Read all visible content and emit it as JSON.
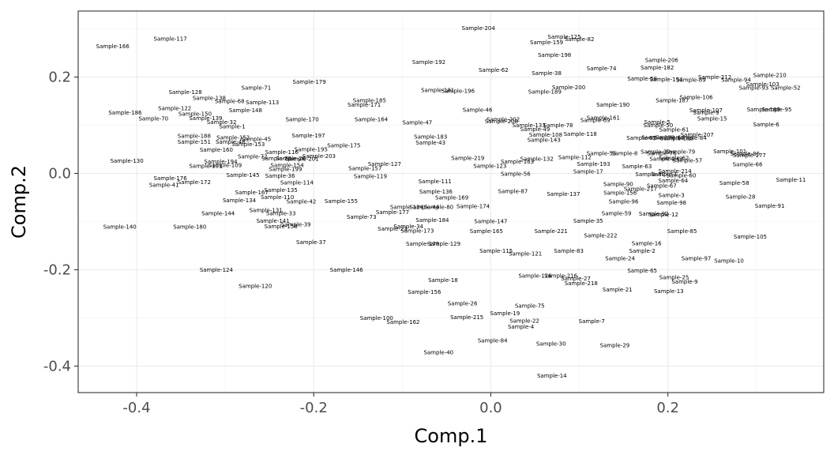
{
  "chart_data": {
    "type": "scatter",
    "title": "",
    "xlabel": "Comp.1",
    "ylabel": "Comp.2",
    "xlim": [
      -0.466,
      0.376
    ],
    "ylim": [
      -0.455,
      0.337
    ],
    "xticks": [
      -0.4,
      -0.2,
      0.0,
      0.2
    ],
    "xtick_labels": [
      "-0.4",
      "-0.2",
      "0.0",
      "0.2"
    ],
    "yticks": [
      -0.4,
      -0.2,
      0.0,
      0.2
    ],
    "ytick_labels": [
      "-0.4",
      "-0.2",
      "0.0",
      "0.2"
    ],
    "grid": true,
    "points": [
      {
        "label": "Sample-204",
        "x": -0.014,
        "y": 0.302
      },
      {
        "label": "Sample-125",
        "x": 0.083,
        "y": 0.284
      },
      {
        "label": "Sample-82",
        "x": 0.1,
        "y": 0.279
      },
      {
        "label": "Sample-159",
        "x": 0.063,
        "y": 0.272
      },
      {
        "label": "Sample-117",
        "x": -0.362,
        "y": 0.28
      },
      {
        "label": "Sample-166",
        "x": -0.427,
        "y": 0.264
      },
      {
        "label": "Sample-198",
        "x": 0.072,
        "y": 0.246
      },
      {
        "label": "Sample-206",
        "x": 0.193,
        "y": 0.235
      },
      {
        "label": "Sample-192",
        "x": -0.07,
        "y": 0.231
      },
      {
        "label": "Sample-182",
        "x": 0.188,
        "y": 0.22
      },
      {
        "label": "Sample-74",
        "x": 0.125,
        "y": 0.218
      },
      {
        "label": "Sample-62",
        "x": 0.003,
        "y": 0.215
      },
      {
        "label": "Sample-38",
        "x": 0.063,
        "y": 0.208
      },
      {
        "label": "Sample-210",
        "x": 0.315,
        "y": 0.204
      },
      {
        "label": "Sample-212",
        "x": 0.253,
        "y": 0.2
      },
      {
        "label": "Sample-179",
        "x": -0.205,
        "y": 0.19
      },
      {
        "label": "Sample-58",
        "x": 0.171,
        "y": 0.197
      },
      {
        "label": "Sample-194",
        "x": 0.198,
        "y": 0.195
      },
      {
        "label": "Sample-89",
        "x": 0.226,
        "y": 0.194
      },
      {
        "label": "Sample-94",
        "x": 0.277,
        "y": 0.194
      },
      {
        "label": "Sample-103",
        "x": 0.307,
        "y": 0.185
      },
      {
        "label": "Sample-200",
        "x": 0.088,
        "y": 0.179
      },
      {
        "label": "Sample-93",
        "x": 0.297,
        "y": 0.178
      },
      {
        "label": "Sample-52",
        "x": 0.333,
        "y": 0.178
      },
      {
        "label": "Sample-71",
        "x": -0.265,
        "y": 0.178
      },
      {
        "label": "Sample-181",
        "x": -0.06,
        "y": 0.173
      },
      {
        "label": "Sample-196",
        "x": -0.037,
        "y": 0.171
      },
      {
        "label": "Sample-189",
        "x": 0.061,
        "y": 0.17
      },
      {
        "label": "Sample-128",
        "x": -0.345,
        "y": 0.169
      },
      {
        "label": "Sample-106",
        "x": 0.232,
        "y": 0.158
      },
      {
        "label": "Sample-138",
        "x": -0.318,
        "y": 0.157
      },
      {
        "label": "Sample-185",
        "x": -0.137,
        "y": 0.152
      },
      {
        "label": "Sample-187",
        "x": 0.205,
        "y": 0.152
      },
      {
        "label": "Sample-68",
        "x": -0.295,
        "y": 0.15
      },
      {
        "label": "Sample-113",
        "x": -0.258,
        "y": 0.148
      },
      {
        "label": "Sample-171",
        "x": -0.143,
        "y": 0.143
      },
      {
        "label": "Sample-190",
        "x": 0.138,
        "y": 0.143
      },
      {
        "label": "Sample-122",
        "x": -0.357,
        "y": 0.135
      },
      {
        "label": "Sample-148",
        "x": -0.277,
        "y": 0.131
      },
      {
        "label": "Sample-46",
        "x": -0.015,
        "y": 0.132
      },
      {
        "label": "Sample-189b",
        "x": 0.308,
        "y": 0.133
      },
      {
        "label": "Sample-95",
        "x": 0.323,
        "y": 0.133
      },
      {
        "label": "Sample-107",
        "x": 0.243,
        "y": 0.131
      },
      {
        "label": "Sample-186",
        "x": -0.413,
        "y": 0.126
      },
      {
        "label": "Sample-150",
        "x": -0.334,
        "y": 0.124
      },
      {
        "label": "Sample-9",
        "x": 0.243,
        "y": 0.126
      },
      {
        "label": "Sample-70",
        "x": -0.381,
        "y": 0.114
      },
      {
        "label": "Sample-139",
        "x": -0.322,
        "y": 0.115
      },
      {
        "label": "Sample-161",
        "x": 0.127,
        "y": 0.116
      },
      {
        "label": "Sample-15",
        "x": 0.25,
        "y": 0.114
      },
      {
        "label": "Sample-69",
        "x": 0.118,
        "y": 0.111
      },
      {
        "label": "Sample-170",
        "x": -0.213,
        "y": 0.112
      },
      {
        "label": "Sample-164",
        "x": -0.135,
        "y": 0.112
      },
      {
        "label": "Sample-202",
        "x": 0.014,
        "y": 0.112
      },
      {
        "label": "Sample-32",
        "x": -0.304,
        "y": 0.107
      },
      {
        "label": "Sample-5",
        "x": 0.188,
        "y": 0.107
      },
      {
        "label": "Sample-47",
        "x": -0.083,
        "y": 0.106
      },
      {
        "label": "Sample-208",
        "x": 0.012,
        "y": 0.108
      },
      {
        "label": "Sample-6",
        "x": 0.311,
        "y": 0.102
      },
      {
        "label": "Sample-1",
        "x": -0.292,
        "y": 0.098
      },
      {
        "label": "Sample-133",
        "x": 0.043,
        "y": 0.1
      },
      {
        "label": "Sample-78",
        "x": 0.076,
        "y": 0.1
      },
      {
        "label": "Sample-50",
        "x": 0.189,
        "y": 0.1
      },
      {
        "label": "Sample-49",
        "x": 0.05,
        "y": 0.092
      },
      {
        "label": "Sample-61",
        "x": 0.207,
        "y": 0.091
      },
      {
        "label": "Sample-197",
        "x": -0.206,
        "y": 0.079
      },
      {
        "label": "Sample-108",
        "x": 0.062,
        "y": 0.08
      },
      {
        "label": "Sample-118",
        "x": 0.101,
        "y": 0.082
      },
      {
        "label": "Sample-183",
        "x": -0.068,
        "y": 0.076
      },
      {
        "label": "Sample-207",
        "x": 0.233,
        "y": 0.08
      },
      {
        "label": "Sample-188",
        "x": -0.335,
        "y": 0.078
      },
      {
        "label": "Sample-152",
        "x": -0.291,
        "y": 0.075
      },
      {
        "label": "Sample-65",
        "x": 0.17,
        "y": 0.074
      },
      {
        "label": "Sample-220",
        "x": 0.189,
        "y": 0.075
      },
      {
        "label": "Sample-64",
        "x": 0.202,
        "y": 0.075
      },
      {
        "label": "Sample-84",
        "x": 0.227,
        "y": 0.074
      },
      {
        "label": "Sample-45",
        "x": -0.265,
        "y": 0.071
      },
      {
        "label": "Sample-188b",
        "x": 0.21,
        "y": 0.073
      },
      {
        "label": "Sample-143",
        "x": 0.06,
        "y": 0.07
      },
      {
        "label": "Sample-151",
        "x": -0.335,
        "y": 0.066
      },
      {
        "label": "Sample-48",
        "x": -0.294,
        "y": 0.066
      },
      {
        "label": "Sample-43",
        "x": -0.068,
        "y": 0.064
      },
      {
        "label": "Sample-175",
        "x": -0.166,
        "y": 0.058
      },
      {
        "label": "Sample-153",
        "x": -0.274,
        "y": 0.061
      },
      {
        "label": "Sample-195",
        "x": -0.203,
        "y": 0.05
      },
      {
        "label": "Sample-160",
        "x": -0.31,
        "y": 0.049
      },
      {
        "label": "Sample-101",
        "x": 0.27,
        "y": 0.046
      },
      {
        "label": "Sample-116",
        "x": -0.236,
        "y": 0.044
      },
      {
        "label": "Sample-79",
        "x": 0.214,
        "y": 0.045
      },
      {
        "label": "Sample-39",
        "x": 0.186,
        "y": 0.045
      },
      {
        "label": "Sample-55",
        "x": 0.125,
        "y": 0.042
      },
      {
        "label": "Sample-8",
        "x": 0.151,
        "y": 0.042
      },
      {
        "label": "Sample-76",
        "x": 0.193,
        "y": 0.042
      },
      {
        "label": "Sample-86",
        "x": 0.287,
        "y": 0.041
      },
      {
        "label": "Sample-177",
        "x": 0.292,
        "y": 0.038
      },
      {
        "label": "Sample-203",
        "x": -0.194,
        "y": 0.036
      },
      {
        "label": "Sample-72",
        "x": -0.269,
        "y": 0.035
      },
      {
        "label": "Sample-26",
        "x": -0.226,
        "y": 0.031
      },
      {
        "label": "Sample-201",
        "x": -0.213,
        "y": 0.03
      },
      {
        "label": "Sample-28",
        "x": -0.242,
        "y": 0.031
      },
      {
        "label": "Sample-112",
        "x": 0.095,
        "y": 0.034
      },
      {
        "label": "Sample-219",
        "x": -0.026,
        "y": 0.032
      },
      {
        "label": "Sample-132",
        "x": 0.052,
        "y": 0.03
      },
      {
        "label": "Sample-62b",
        "x": 0.207,
        "y": 0.032
      },
      {
        "label": "Sample-57",
        "x": 0.222,
        "y": 0.027
      },
      {
        "label": "Sample-142",
        "x": 0.198,
        "y": 0.03
      },
      {
        "label": "Sample-194b",
        "x": -0.305,
        "y": 0.025
      },
      {
        "label": "Sample-130",
        "x": -0.411,
        "y": 0.026
      },
      {
        "label": "Sample-163",
        "x": 0.03,
        "y": 0.025
      },
      {
        "label": "Sample-127",
        "x": -0.12,
        "y": 0.02
      },
      {
        "label": "Sample-193",
        "x": 0.116,
        "y": 0.02
      },
      {
        "label": "Sample-154",
        "x": -0.23,
        "y": 0.017
      },
      {
        "label": "Sample-66",
        "x": 0.29,
        "y": 0.019
      },
      {
        "label": "Sample-123",
        "x": -0.001,
        "y": 0.016
      },
      {
        "label": "Sample-109",
        "x": -0.3,
        "y": 0.017
      },
      {
        "label": "Sample-191",
        "x": -0.322,
        "y": 0.016
      },
      {
        "label": "Sample-63",
        "x": 0.165,
        "y": 0.015
      },
      {
        "label": "Sample-157",
        "x": -0.142,
        "y": 0.011
      },
      {
        "label": "Sample-199",
        "x": -0.232,
        "y": 0.009
      },
      {
        "label": "Sample-17",
        "x": 0.11,
        "y": 0.004
      },
      {
        "label": "Sample-214",
        "x": 0.208,
        "y": 0.005
      },
      {
        "label": "Sample-56",
        "x": 0.028,
        "y": -0.001
      },
      {
        "label": "Sample-145",
        "x": -0.28,
        "y": -0.003
      },
      {
        "label": "Sample-36",
        "x": -0.238,
        "y": -0.005
      },
      {
        "label": "Sample-119",
        "x": -0.136,
        "y": -0.006
      },
      {
        "label": "Sample-80",
        "x": 0.18,
        "y": -0.002
      },
      {
        "label": "Sample-1b",
        "x": 0.196,
        "y": -0.002
      },
      {
        "label": "Sample-60",
        "x": 0.215,
        "y": -0.004
      },
      {
        "label": "Sample-11",
        "x": 0.339,
        "y": -0.013
      },
      {
        "label": "Sample-64b",
        "x": 0.206,
        "y": -0.015
      },
      {
        "label": "Sample-176",
        "x": -0.362,
        "y": -0.01
      },
      {
        "label": "Sample-111",
        "x": -0.063,
        "y": -0.016
      },
      {
        "label": "Sample-172",
        "x": -0.335,
        "y": -0.018
      },
      {
        "label": "Sample-114",
        "x": -0.219,
        "y": -0.019
      },
      {
        "label": "Sample-90",
        "x": 0.144,
        "y": -0.022
      },
      {
        "label": "Sample-67",
        "x": 0.193,
        "y": -0.025
      },
      {
        "label": "Sample-58b",
        "x": 0.275,
        "y": -0.02
      },
      {
        "label": "Sample-41",
        "x": -0.369,
        "y": -0.024
      },
      {
        "label": "Sample-135",
        "x": -0.237,
        "y": -0.034
      },
      {
        "label": "Sample-217",
        "x": 0.169,
        "y": -0.032
      },
      {
        "label": "Sample-87",
        "x": 0.025,
        "y": -0.037
      },
      {
        "label": "Sample-136",
        "x": -0.062,
        "y": -0.038
      },
      {
        "label": "Sample-167",
        "x": -0.27,
        "y": -0.039
      },
      {
        "label": "Sample-137",
        "x": 0.082,
        "y": -0.043
      },
      {
        "label": "Sample-156b",
        "x": 0.146,
        "y": -0.04
      },
      {
        "label": "Sample-3",
        "x": 0.204,
        "y": -0.045
      },
      {
        "label": "Sample-110",
        "x": -0.241,
        "y": -0.049
      },
      {
        "label": "Sample-169",
        "x": -0.044,
        "y": -0.05
      },
      {
        "label": "Sample-28b",
        "x": 0.282,
        "y": -0.048
      },
      {
        "label": "Sample-134",
        "x": -0.284,
        "y": -0.056
      },
      {
        "label": "Sample-42",
        "x": -0.214,
        "y": -0.058
      },
      {
        "label": "Sample-155",
        "x": -0.169,
        "y": -0.057
      },
      {
        "label": "Sample-96",
        "x": 0.15,
        "y": -0.058
      },
      {
        "label": "Sample-98",
        "x": 0.204,
        "y": -0.061
      },
      {
        "label": "Sample-174",
        "x": -0.02,
        "y": -0.068
      },
      {
        "label": "Sample-91",
        "x": 0.315,
        "y": -0.067
      },
      {
        "label": "Sample-124b",
        "x": -0.095,
        "y": -0.07
      },
      {
        "label": "Sample-44",
        "x": -0.075,
        "y": -0.07
      },
      {
        "label": "Sample-80b",
        "x": -0.059,
        "y": -0.07
      },
      {
        "label": "Sample-131",
        "x": -0.254,
        "y": -0.076
      },
      {
        "label": "Sample-177b",
        "x": -0.111,
        "y": -0.08
      },
      {
        "label": "Sample-144",
        "x": -0.308,
        "y": -0.083
      },
      {
        "label": "Sample-33",
        "x": -0.237,
        "y": -0.083
      },
      {
        "label": "Sample-59",
        "x": 0.142,
        "y": -0.083
      },
      {
        "label": "Sample-92",
        "x": 0.184,
        "y": -0.084
      },
      {
        "label": "Sample-12",
        "x": 0.195,
        "y": -0.085
      },
      {
        "label": "Sample-73",
        "x": -0.146,
        "y": -0.09
      },
      {
        "label": "Sample-184",
        "x": -0.066,
        "y": -0.097
      },
      {
        "label": "Sample-141",
        "x": -0.246,
        "y": -0.098
      },
      {
        "label": "Sample-147",
        "x": 0.0,
        "y": -0.099
      },
      {
        "label": "Sample-35",
        "x": 0.11,
        "y": -0.098
      },
      {
        "label": "Sample-39b",
        "x": -0.22,
        "y": -0.106
      },
      {
        "label": "Sample-158",
        "x": -0.237,
        "y": -0.11
      },
      {
        "label": "Sample-140",
        "x": -0.419,
        "y": -0.111
      },
      {
        "label": "Sample-180",
        "x": -0.34,
        "y": -0.111
      },
      {
        "label": "Sample-34",
        "x": -0.093,
        "y": -0.11
      },
      {
        "label": "Sample-23",
        "x": -0.111,
        "y": -0.115
      },
      {
        "label": "Sample-173",
        "x": -0.083,
        "y": -0.119
      },
      {
        "label": "Sample-165",
        "x": -0.005,
        "y": -0.12
      },
      {
        "label": "Sample-221",
        "x": 0.068,
        "y": -0.12
      },
      {
        "label": "Sample-85",
        "x": 0.216,
        "y": -0.12
      },
      {
        "label": "Sample-222",
        "x": 0.124,
        "y": -0.129
      },
      {
        "label": "Sample-105",
        "x": 0.293,
        "y": -0.131
      },
      {
        "label": "Sample-37",
        "x": -0.203,
        "y": -0.143
      },
      {
        "label": "Sample-16",
        "x": 0.176,
        "y": -0.145
      },
      {
        "label": "Sample-178",
        "x": -0.077,
        "y": -0.146
      },
      {
        "label": "Sample-129",
        "x": -0.053,
        "y": -0.146
      },
      {
        "label": "Sample-115",
        "x": 0.006,
        "y": -0.161
      },
      {
        "label": "Sample-83",
        "x": 0.088,
        "y": -0.161
      },
      {
        "label": "Sample-2",
        "x": 0.171,
        "y": -0.161
      },
      {
        "label": "Sample-121",
        "x": 0.039,
        "y": -0.166
      },
      {
        "label": "Sample-24",
        "x": 0.146,
        "y": -0.176
      },
      {
        "label": "Sample-97",
        "x": 0.232,
        "y": -0.176
      },
      {
        "label": "Sample-10",
        "x": 0.269,
        "y": -0.181
      },
      {
        "label": "Sample-124",
        "x": -0.31,
        "y": -0.2
      },
      {
        "label": "Sample-146",
        "x": -0.163,
        "y": -0.2
      },
      {
        "label": "Sample-65b",
        "x": 0.171,
        "y": -0.202
      },
      {
        "label": "Sample-126",
        "x": 0.05,
        "y": -0.212
      },
      {
        "label": "Sample-216",
        "x": 0.079,
        "y": -0.212
      },
      {
        "label": "Sample-27",
        "x": 0.096,
        "y": -0.218
      },
      {
        "label": "Sample-25",
        "x": 0.207,
        "y": -0.216
      },
      {
        "label": "Sample-9b",
        "x": 0.219,
        "y": -0.225
      },
      {
        "label": "Sample-18",
        "x": -0.054,
        "y": -0.221
      },
      {
        "label": "Sample-218",
        "x": 0.102,
        "y": -0.228
      },
      {
        "label": "Sample-120",
        "x": -0.266,
        "y": -0.234
      },
      {
        "label": "Sample-21",
        "x": 0.143,
        "y": -0.241
      },
      {
        "label": "Sample-13",
        "x": 0.201,
        "y": -0.244
      },
      {
        "label": "Sample-156",
        "x": -0.075,
        "y": -0.246
      },
      {
        "label": "Sample-26b",
        "x": -0.032,
        "y": -0.27
      },
      {
        "label": "Sample-75",
        "x": 0.044,
        "y": -0.275
      },
      {
        "label": "Sample-19",
        "x": 0.016,
        "y": -0.29
      },
      {
        "label": "Sample-215",
        "x": -0.027,
        "y": -0.298
      },
      {
        "label": "Sample-100",
        "x": -0.129,
        "y": -0.3
      },
      {
        "label": "Sample-162",
        "x": -0.099,
        "y": -0.308
      },
      {
        "label": "Sample-22",
        "x": 0.038,
        "y": -0.306
      },
      {
        "label": "Sample-7",
        "x": 0.114,
        "y": -0.307
      },
      {
        "label": "Sample-4",
        "x": 0.034,
        "y": -0.318
      },
      {
        "label": "Sample-84b",
        "x": 0.002,
        "y": -0.347
      },
      {
        "label": "Sample-30",
        "x": 0.068,
        "y": -0.353
      },
      {
        "label": "Sample-29",
        "x": 0.14,
        "y": -0.357
      },
      {
        "label": "Sample-40",
        "x": -0.059,
        "y": -0.371
      },
      {
        "label": "Sample-14",
        "x": 0.069,
        "y": -0.42
      }
    ]
  }
}
